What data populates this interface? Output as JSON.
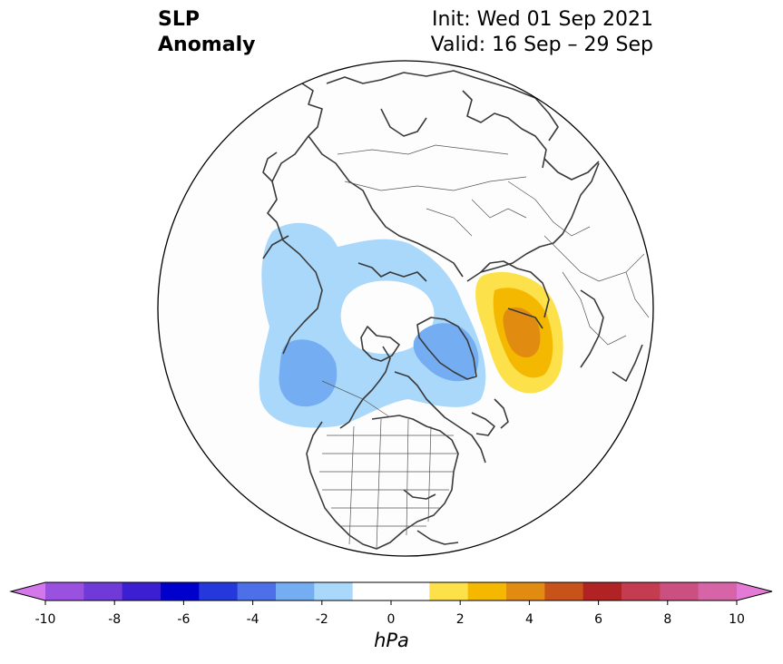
{
  "title": {
    "variable_line1": "SLP",
    "variable_line2": "Anomaly",
    "init": "Init: Wed 01 Sep 2021",
    "valid": "Valid: 16 Sep – 29 Sep"
  },
  "map": {
    "projection": "north-polar-stereographic",
    "background_color": "#fdfdfd",
    "coastline_color": "#3a3a3a",
    "anomaly_regions": [
      {
        "name": "north-pacific-negative",
        "level": -2,
        "color": "#a9d8fb"
      },
      {
        "name": "north-pacific-core",
        "level": -3,
        "color": "#74adf2"
      },
      {
        "name": "greenland-negative-core",
        "level": -3,
        "color": "#74adf2"
      },
      {
        "name": "ural-positive",
        "level": 1,
        "color": "#fde14b"
      },
      {
        "name": "ural-positive-mid",
        "level": 2,
        "color": "#f4b800"
      },
      {
        "name": "ural-positive-core",
        "level": 3,
        "color": "#e18c11"
      }
    ]
  },
  "colorbar": {
    "units": "hPa",
    "extend": "both",
    "tick_labels": [
      "-10",
      "-8",
      "-6",
      "-4",
      "-2",
      "0",
      "2",
      "4",
      "6",
      "8",
      "10"
    ],
    "bounds": [
      -10,
      10
    ],
    "colors": [
      "#9b51e0",
      "#6f3ad8",
      "#3b1fd0",
      "#0000cc",
      "#2438dc",
      "#4d70e8",
      "#74adf2",
      "#a9d8fb",
      "#ffffff",
      "#ffffff",
      "#fde14b",
      "#f4b800",
      "#e18c11",
      "#c8531a",
      "#b02224",
      "#c43c50",
      "#cc4f82",
      "#d864a8"
    ],
    "under_color": "#d477ea",
    "over_color": "#e27ad6"
  }
}
